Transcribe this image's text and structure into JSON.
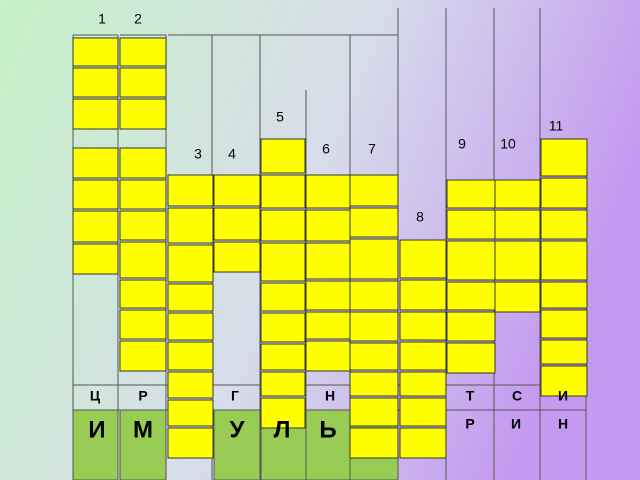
{
  "column_numbers": [
    "1",
    "2",
    "3",
    "4",
    "5",
    "6",
    "7",
    "8",
    "9",
    "10",
    "11"
  ],
  "letters_small": [
    "Ц",
    "Р",
    "Г",
    "Н",
    "Т",
    "С",
    "И"
  ],
  "letters_large": [
    "И",
    "М",
    "У",
    "Л",
    "Ь"
  ],
  "letters_row": [
    "Р",
    "И",
    "Н"
  ]
}
